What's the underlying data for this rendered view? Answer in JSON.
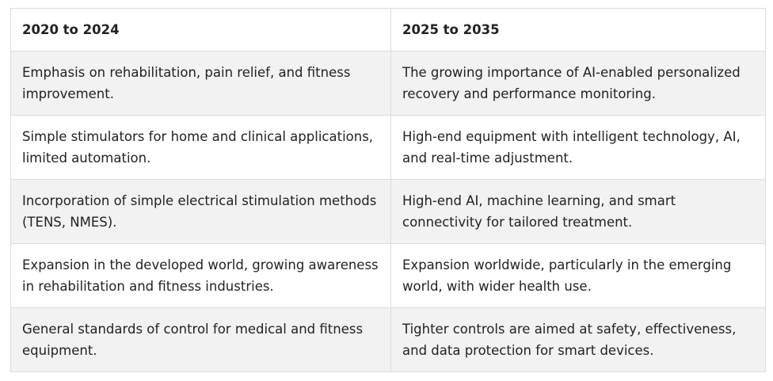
{
  "table": {
    "headers": [
      "2020 to 2024",
      "2025 to 2035"
    ],
    "rows": [
      [
        "Emphasis on rehabilitation, pain relief, and fitness improvement.",
        "The growing importance of AI-enabled personalized recovery and performance monitoring."
      ],
      [
        "Simple stimulators for home and clinical applications, limited automation.",
        "High-end equipment with intelligent technology, AI, and real-time adjustment."
      ],
      [
        "Incorporation of simple electrical stimulation methods (TENS, NMES).",
        "High-end AI, machine learning, and smart connectivity for tailored treatment."
      ],
      [
        "Expansion in the developed world, growing awareness in rehabilitation and fitness industries.",
        "Expansion worldwide, particularly in the emerging world, with wider health use."
      ],
      [
        "General standards of control for medical and fitness equipment.",
        "Tighter controls are aimed at safety, effectiveness, and data protection for smart devices."
      ]
    ]
  },
  "colors": {
    "border": "#dcdcdc",
    "row_alt": "#f2f2f2",
    "text": "#222222"
  }
}
